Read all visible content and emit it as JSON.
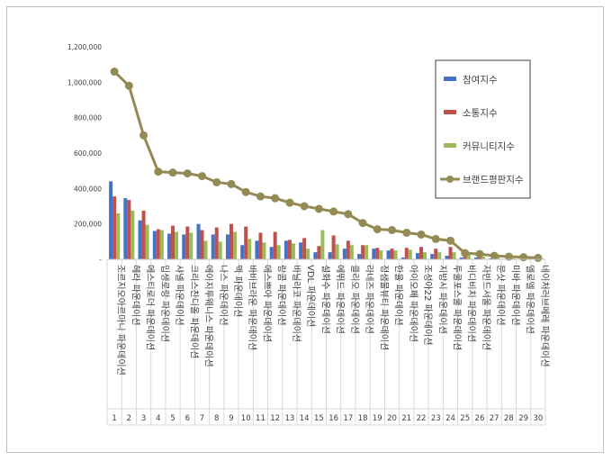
{
  "chart_data": {
    "type": "bar",
    "title": "",
    "xlabel": "",
    "ylabel": "",
    "ylim": [
      0,
      1200000
    ],
    "y_ticks": [
      "-",
      "200,000",
      "400,000",
      "600,000",
      "800,000",
      "1,000,000",
      "1,200,000"
    ],
    "grid": false,
    "legend_position": "right",
    "categories": [
      "조르지오아르마니 파운데이션",
      "헤라 파운데이션",
      "에스티로더 파운데이션",
      "입생로랑 파운데이션",
      "샤넬 파운데이션",
      "크리스찬디올 파운데이션",
      "에이지투웨니스 파운데이션",
      "나스 파운데이션",
      "맥 파운데이션",
      "바비브라운 파운데이션",
      "에스쁘아 파운데이션",
      "랑콤 파운데이션",
      "바닐라코 파운데이션",
      "VDL 파운데이션",
      "설화수 파운데이션",
      "에뛰드 파운데이션",
      "클리오 파운데이션",
      "라네즈 파운데이션",
      "정샘물뷰티 파운데이션",
      "한율 파운데이션",
      "아이오페 파운데이션",
      "조성아22 파운데이션",
      "지방시 파운데이션",
      "투쿨포스쿨 파운데이션",
      "비디비치 파운데이션",
      "자빈드서울 파운데이션",
      "문샷 파운데이션",
      "미바 파운데이션",
      "엘로엘 파운데이션",
      "네이처러브메레 파운데이션"
    ],
    "category_numbers": [
      "1",
      "2",
      "3",
      "4",
      "5",
      "6",
      "7",
      "8",
      "9",
      "10",
      "11",
      "12",
      "13",
      "14",
      "15",
      "16",
      "17",
      "18",
      "19",
      "20",
      "21",
      "22",
      "23",
      "24",
      "25",
      "26",
      "27",
      "28",
      "29",
      "30"
    ],
    "series": [
      {
        "name": "참여지수",
        "kind": "bar",
        "color": "#4472c4",
        "values": [
          440000,
          345000,
          220000,
          160000,
          145000,
          140000,
          200000,
          140000,
          140000,
          80000,
          105000,
          70000,
          105000,
          95000,
          40000,
          40000,
          60000,
          30000,
          60000,
          50000,
          10000,
          35000,
          30000,
          20000,
          10000,
          10000,
          5000,
          2000,
          2000,
          2000
        ]
      },
      {
        "name": "소통지수",
        "kind": "bar",
        "color": "#c0504d",
        "values": [
          355000,
          335000,
          275000,
          170000,
          190000,
          185000,
          165000,
          180000,
          200000,
          185000,
          150000,
          155000,
          110000,
          120000,
          75000,
          135000,
          105000,
          80000,
          65000,
          60000,
          65000,
          70000,
          60000,
          70000,
          25000,
          30000,
          20000,
          10000,
          10000,
          5000
        ]
      },
      {
        "name": "커뮤니티지수",
        "kind": "bar",
        "color": "#9bbb59",
        "values": [
          260000,
          275000,
          195000,
          165000,
          155000,
          150000,
          105000,
          100000,
          155000,
          115000,
          95000,
          80000,
          90000,
          60000,
          165000,
          85000,
          80000,
          80000,
          50000,
          50000,
          55000,
          40000,
          40000,
          40000,
          30000,
          15000,
          10000,
          5000,
          5000,
          5000
        ]
      },
      {
        "name": "브랜드평판지수",
        "kind": "line",
        "color": "#948a54",
        "values": [
          1060000,
          980000,
          700000,
          495000,
          490000,
          485000,
          470000,
          435000,
          425000,
          380000,
          355000,
          345000,
          320000,
          300000,
          285000,
          270000,
          255000,
          205000,
          170000,
          165000,
          150000,
          140000,
          115000,
          105000,
          35000,
          30000,
          20000,
          15000,
          12000,
          8000
        ]
      }
    ]
  }
}
